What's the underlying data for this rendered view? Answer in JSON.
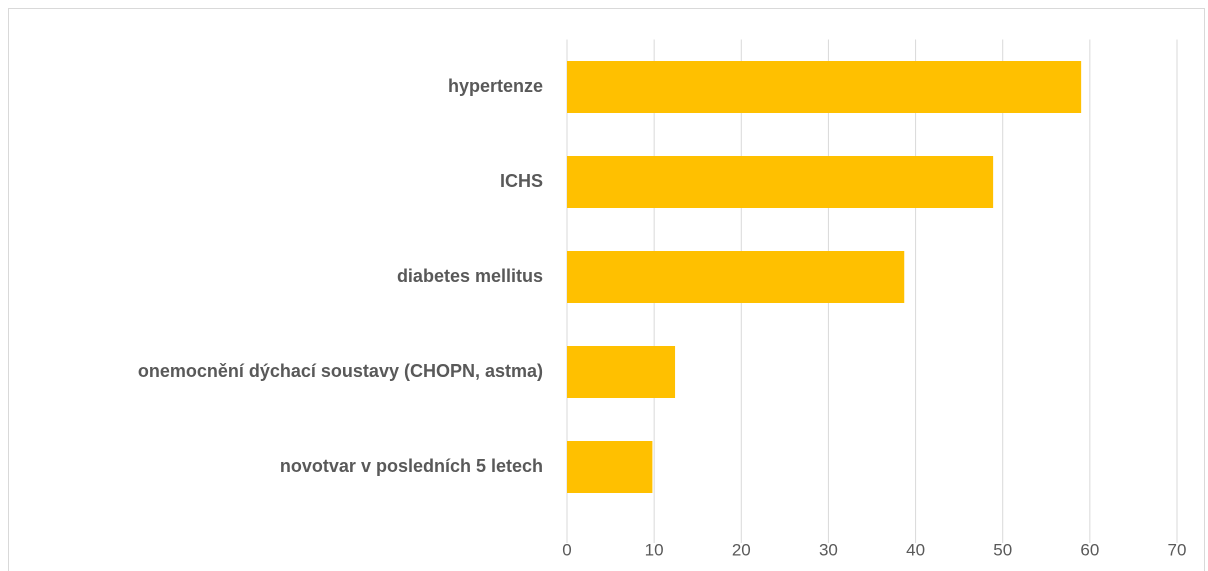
{
  "chart_data": {
    "type": "bar",
    "orientation": "horizontal",
    "categories": [
      "hypertenze",
      "ICHS",
      "diabetes mellitus",
      "onemocnění dýchací soustavy (CHOPN, astma)",
      "novotvar v posledních 5 letech"
    ],
    "values": [
      59,
      48.9,
      38.7,
      12.4,
      9.8
    ],
    "color": "#ffc000",
    "xlim": [
      0,
      70
    ],
    "xticks": [
      0,
      10,
      20,
      30,
      40,
      50,
      60,
      70
    ],
    "grid": true
  }
}
